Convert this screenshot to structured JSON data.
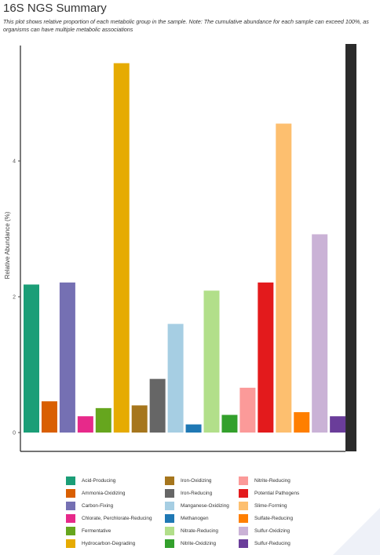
{
  "page": {
    "title": "16S NGS Summary",
    "subtitle": "This plot shows relative proportion of each metabolic group in the sample. Note: The cumulative abundance for each sample can exceed 100%, as organisms can have multiple metabolic associations"
  },
  "chart_data": {
    "type": "bar",
    "ylabel": "Relative Abundance (%)",
    "ylim": [
      0,
      5.7
    ],
    "yticks": [
      0,
      2,
      4
    ],
    "ytick_labels": [
      "0",
      "2",
      "4"
    ],
    "grid": false,
    "legend_position": "bottom",
    "categories": [
      "Acid-Producing",
      "Ammonia-Oxidizing",
      "Carbon-Fixing",
      "Chlorate, Perchlorate-Reducing",
      "Fermentative",
      "Hydrocarbon-Degrading",
      "Iron-Oxidizing",
      "Iron-Reducing",
      "Manganese-Oxidizing",
      "Methanogen",
      "Nitrate-Reducing",
      "Nitrite-Oxidizing",
      "Nitrite-Reducing",
      "Potential Pathogens",
      "Slime-Forming",
      "Sulfate-Reducing",
      "Sulfur-Oxidizing",
      "Sulfur-Reducing"
    ],
    "values": [
      2.18,
      0.46,
      2.21,
      0.24,
      0.36,
      5.44,
      0.4,
      0.79,
      1.6,
      0.12,
      2.09,
      0.26,
      0.66,
      2.21,
      4.55,
      0.3,
      2.92,
      0.24
    ],
    "colors": [
      "#1b9e77",
      "#d95f02",
      "#7570b3",
      "#e7298a",
      "#66a61e",
      "#e6ab02",
      "#a6761d",
      "#666666",
      "#a6cee3",
      "#1f78b4",
      "#b2df8a",
      "#33a02c",
      "#fb9a99",
      "#e31a1c",
      "#fdbf6f",
      "#ff7f00",
      "#cab2d6",
      "#6a3d9a"
    ]
  }
}
